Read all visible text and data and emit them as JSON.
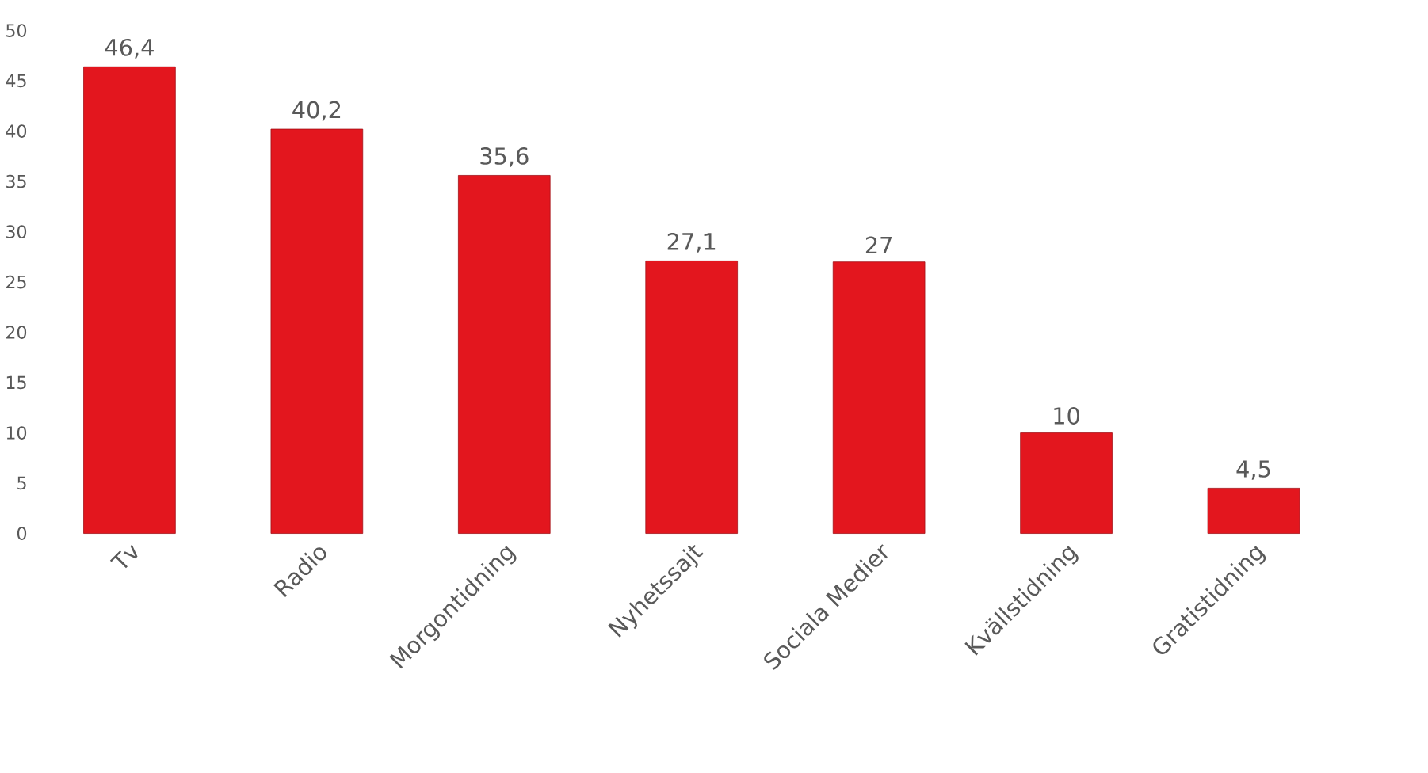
{
  "chart_data": {
    "type": "bar",
    "categories": [
      "Tv",
      "Radio",
      "Morgontidning",
      "Nyhetssajt",
      "Sociala Medier",
      "Kvällstidning",
      "Gratistidning"
    ],
    "values": [
      46.4,
      40.2,
      35.6,
      27.1,
      27,
      10,
      4.5
    ],
    "value_labels": [
      "46,4",
      "40,2",
      "35,6",
      "27,1",
      "27",
      "10",
      "4,5"
    ],
    "color": "#e3161e",
    "ylim": [
      0,
      50
    ],
    "yticks": [
      0,
      5,
      10,
      15,
      20,
      25,
      30,
      35,
      40,
      45,
      50
    ]
  }
}
